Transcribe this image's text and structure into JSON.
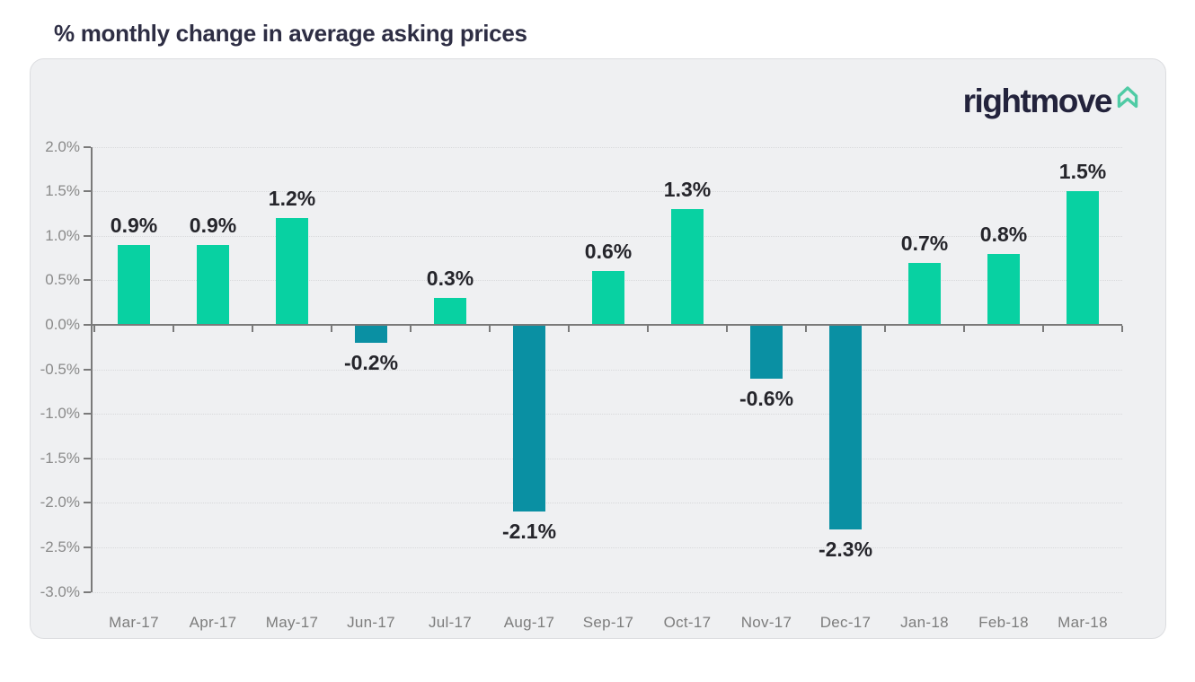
{
  "page": {
    "title": "% monthly change in average asking prices"
  },
  "brand": {
    "logo_text": "rightmove",
    "logo_text_color": "#23233c",
    "house_icon_color": "#50cba5"
  },
  "chart_data": {
    "type": "bar",
    "title": "% monthly change in average asking prices",
    "categories": [
      "Mar-17",
      "Apr-17",
      "May-17",
      "Jun-17",
      "Jul-17",
      "Aug-17",
      "Sep-17",
      "Oct-17",
      "Nov-17",
      "Dec-17",
      "Jan-18",
      "Feb-18",
      "Mar-18"
    ],
    "values": [
      0.9,
      0.9,
      1.2,
      -0.2,
      0.3,
      -2.1,
      0.6,
      1.3,
      -0.6,
      -2.3,
      0.7,
      0.8,
      1.5
    ],
    "bar_labels": [
      "0.9%",
      "0.9%",
      "1.2%",
      "-0.2%",
      "0.3%",
      "-2.1%",
      "0.6%",
      "1.3%",
      "-0.6%",
      "-2.3%",
      "0.7%",
      "0.8%",
      "1.5%"
    ],
    "y_ticks": [
      "2.0%",
      "1.5%",
      "1.0%",
      "0.5%",
      "0.0%",
      "-0.5%",
      "-1.0%",
      "-1.5%",
      "-2.0%",
      "-2.5%",
      "-3.0%"
    ],
    "ylim": [
      -3.0,
      2.0
    ],
    "xlabel": "",
    "ylabel": "",
    "grid": "horizontal-dotted",
    "legend": "none",
    "positive_color": "#08d1a2",
    "negative_color": "#0a90a3",
    "axis_color": "#7a7a7a",
    "tick_label_color": "#8a8a8a",
    "value_label_color": "#25252b"
  }
}
